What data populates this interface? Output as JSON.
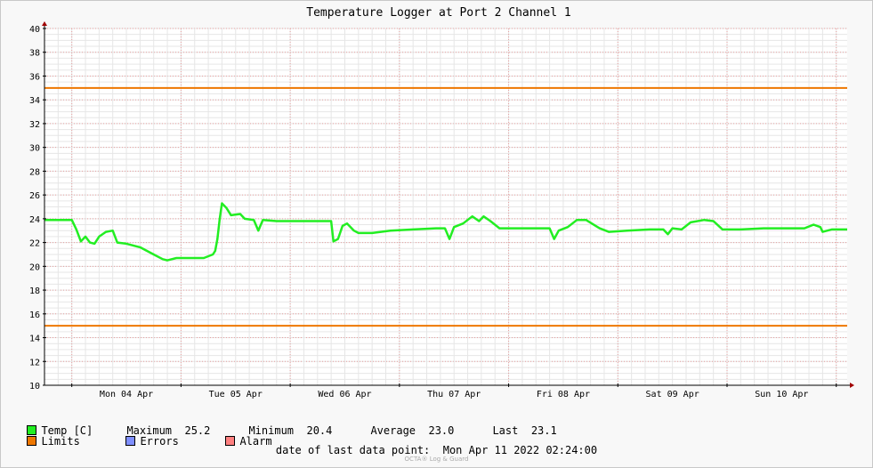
{
  "chart_data": {
    "type": "line",
    "title": "Temperature Logger at Port 2 Channel 1",
    "ylim": [
      10,
      40
    ],
    "yticks": [
      10,
      12,
      14,
      16,
      18,
      20,
      22,
      24,
      26,
      28,
      30,
      32,
      34,
      36,
      38,
      40
    ],
    "xlim": [
      "2022-04-03T18:00",
      "2022-04-11T02:24"
    ],
    "x_ticks": [
      {
        "label": "Mon 04 Apr",
        "at": "2022-04-04T12:00"
      },
      {
        "label": "Tue 05 Apr",
        "at": "2022-04-05T12:00"
      },
      {
        "label": "Wed 06 Apr",
        "at": "2022-04-06T12:00"
      },
      {
        "label": "Thu 07 Apr",
        "at": "2022-04-07T12:00"
      },
      {
        "label": "Fri 08 Apr",
        "at": "2022-04-08T12:00"
      },
      {
        "label": "Sat 09 Apr",
        "at": "2022-04-09T12:00"
      },
      {
        "label": "Sun 10 Apr",
        "at": "2022-04-10T12:00"
      }
    ],
    "grid": true,
    "limits": {
      "upper": 35,
      "lower": 15,
      "color": "#ee7700"
    },
    "series": [
      {
        "name": "Temp [C]",
        "color": "#22ee22",
        "points": [
          [
            "2022-04-03T18:00",
            23.9
          ],
          [
            "2022-04-03T21:00",
            23.9
          ],
          [
            "2022-04-04T00:00",
            23.9
          ],
          [
            "2022-04-04T01:00",
            23.1
          ],
          [
            "2022-04-04T02:00",
            22.1
          ],
          [
            "2022-04-04T03:00",
            22.5
          ],
          [
            "2022-04-04T04:00",
            22.0
          ],
          [
            "2022-04-04T05:00",
            21.9
          ],
          [
            "2022-04-04T06:00",
            22.5
          ],
          [
            "2022-04-04T07:30",
            22.9
          ],
          [
            "2022-04-04T09:00",
            23.0
          ],
          [
            "2022-04-04T10:00",
            22.0
          ],
          [
            "2022-04-04T12:00",
            21.9
          ],
          [
            "2022-04-04T15:00",
            21.6
          ],
          [
            "2022-04-04T18:00",
            21.0
          ],
          [
            "2022-04-04T20:00",
            20.6
          ],
          [
            "2022-04-04T21:00",
            20.5
          ],
          [
            "2022-04-04T23:00",
            20.7
          ],
          [
            "2022-04-05T02:00",
            20.7
          ],
          [
            "2022-04-05T05:00",
            20.7
          ],
          [
            "2022-04-05T07:00",
            21.0
          ],
          [
            "2022-04-05T07:30",
            21.3
          ],
          [
            "2022-04-05T08:00",
            22.3
          ],
          [
            "2022-04-05T08:30",
            24.0
          ],
          [
            "2022-04-05T09:00",
            25.3
          ],
          [
            "2022-04-05T10:00",
            24.9
          ],
          [
            "2022-04-05T11:00",
            24.3
          ],
          [
            "2022-04-05T13:00",
            24.4
          ],
          [
            "2022-04-05T14:00",
            24.0
          ],
          [
            "2022-04-05T16:00",
            23.9
          ],
          [
            "2022-04-05T17:00",
            23.0
          ],
          [
            "2022-04-05T18:00",
            23.9
          ],
          [
            "2022-04-05T21:00",
            23.8
          ],
          [
            "2022-04-06T03:00",
            23.8
          ],
          [
            "2022-04-06T09:00",
            23.8
          ],
          [
            "2022-04-06T09:30",
            22.1
          ],
          [
            "2022-04-06T10:30",
            22.3
          ],
          [
            "2022-04-06T11:30",
            23.4
          ],
          [
            "2022-04-06T12:30",
            23.6
          ],
          [
            "2022-04-06T14:00",
            23.0
          ],
          [
            "2022-04-06T15:00",
            22.8
          ],
          [
            "2022-04-06T18:00",
            22.8
          ],
          [
            "2022-04-06T22:00",
            23.0
          ],
          [
            "2022-04-07T03:00",
            23.1
          ],
          [
            "2022-04-07T08:00",
            23.2
          ],
          [
            "2022-04-07T10:00",
            23.2
          ],
          [
            "2022-04-07T11:00",
            22.3
          ],
          [
            "2022-04-07T12:00",
            23.3
          ],
          [
            "2022-04-07T14:00",
            23.6
          ],
          [
            "2022-04-07T16:00",
            24.2
          ],
          [
            "2022-04-07T17:30",
            23.8
          ],
          [
            "2022-04-07T18:30",
            24.2
          ],
          [
            "2022-04-07T20:00",
            23.8
          ],
          [
            "2022-04-07T22:00",
            23.2
          ],
          [
            "2022-04-08T02:00",
            23.2
          ],
          [
            "2022-04-08T08:00",
            23.2
          ],
          [
            "2022-04-08T09:00",
            23.2
          ],
          [
            "2022-04-08T10:00",
            22.3
          ],
          [
            "2022-04-08T11:00",
            23.0
          ],
          [
            "2022-04-08T13:00",
            23.3
          ],
          [
            "2022-04-08T15:00",
            23.9
          ],
          [
            "2022-04-08T17:00",
            23.9
          ],
          [
            "2022-04-08T20:00",
            23.2
          ],
          [
            "2022-04-08T22:00",
            22.9
          ],
          [
            "2022-04-09T02:00",
            23.0
          ],
          [
            "2022-04-09T07:00",
            23.1
          ],
          [
            "2022-04-09T10:00",
            23.1
          ],
          [
            "2022-04-09T11:00",
            22.7
          ],
          [
            "2022-04-09T12:00",
            23.2
          ],
          [
            "2022-04-09T14:00",
            23.1
          ],
          [
            "2022-04-09T16:00",
            23.7
          ],
          [
            "2022-04-09T19:00",
            23.9
          ],
          [
            "2022-04-09T21:00",
            23.8
          ],
          [
            "2022-04-09T23:00",
            23.1
          ],
          [
            "2022-04-10T03:00",
            23.1
          ],
          [
            "2022-04-10T08:00",
            23.2
          ],
          [
            "2022-04-10T12:00",
            23.2
          ],
          [
            "2022-04-10T17:00",
            23.2
          ],
          [
            "2022-04-10T19:00",
            23.5
          ],
          [
            "2022-04-10T20:30",
            23.3
          ],
          [
            "2022-04-10T21:00",
            22.9
          ],
          [
            "2022-04-10T23:00",
            23.1
          ],
          [
            "2022-04-11T02:24",
            23.1
          ]
        ]
      }
    ]
  },
  "legend": {
    "temp_label": "Temp [C]",
    "maximum_label": "Maximum",
    "maximum_value": "25.2",
    "minimum_label": "Minimum",
    "minimum_value": "20.4",
    "average_label": "Average",
    "average_value": "23.0",
    "last_label": "Last",
    "last_value": "23.1",
    "limits_label": "Limits",
    "errors_label": "Errors",
    "alarm_label": "Alarm",
    "temp_color": "#22ee22",
    "limits_color": "#ee7700",
    "errors_color": "#7f8fff",
    "alarm_color": "#ff8080"
  },
  "footer": {
    "last_point_label": "date of last data point:",
    "last_point_value": "Mon Apr 11 2022 02:24:00",
    "watermark": "OCTA® Log & Guard"
  }
}
